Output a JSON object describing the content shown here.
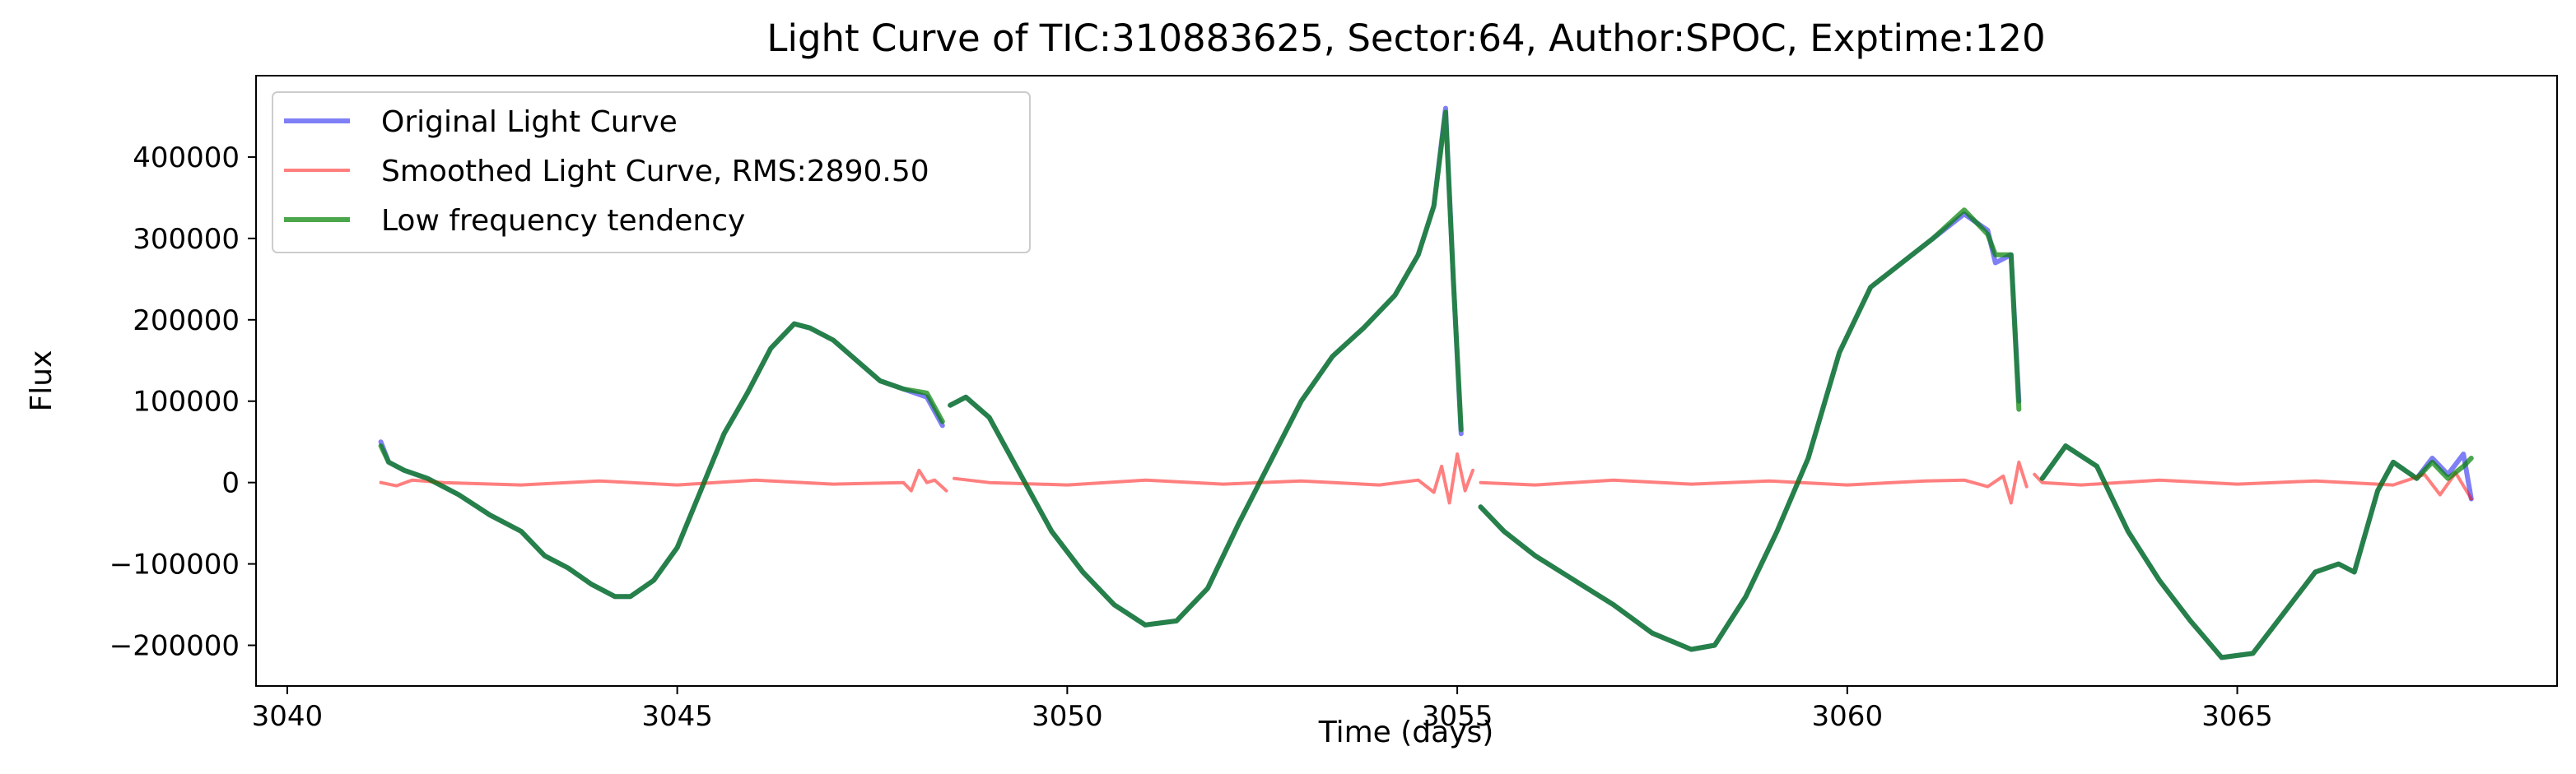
{
  "chart_data": {
    "type": "line",
    "title": "Light Curve of TIC:310883625, Sector:64, Author:SPOC, Exptime:120",
    "xlabel": "Time (days)",
    "ylabel": "Flux",
    "xlim": [
      3039.6,
      3069.1
    ],
    "ylim": [
      -250000,
      500000
    ],
    "xticks": [
      3040,
      3045,
      3050,
      3055,
      3060,
      3065
    ],
    "xtick_labels": [
      "3040",
      "3045",
      "3050",
      "3055",
      "3060",
      "3065"
    ],
    "yticks": [
      -200000,
      -100000,
      0,
      100000,
      200000,
      300000,
      400000
    ],
    "ytick_labels": [
      "−200000",
      "−100000",
      "0",
      "100000",
      "200000",
      "300000",
      "400000"
    ],
    "grid": false,
    "legend_position": "upper-left",
    "series": [
      {
        "name": "Original Light Curve",
        "color": "#0000ee",
        "opacity": 0.5,
        "linewidth": 3,
        "segments": [
          {
            "x": [
              3041.2,
              3041.3,
              3041.5,
              3041.8,
              3042.2,
              3042.6,
              3043.0,
              3043.3,
              3043.6,
              3043.9,
              3044.2,
              3044.4,
              3044.7,
              3045.0,
              3045.3,
              3045.6,
              3045.9,
              3046.2,
              3046.5,
              3046.7,
              3047.0,
              3047.3,
              3047.6,
              3047.9,
              3048.2,
              3048.4
            ],
            "y": [
              50000,
              25000,
              15000,
              5000,
              -15000,
              -40000,
              -60000,
              -90000,
              -105000,
              -125000,
              -140000,
              -140000,
              -120000,
              -80000,
              -10000,
              60000,
              110000,
              165000,
              195000,
              190000,
              175000,
              150000,
              125000,
              115000,
              105000,
              70000
            ]
          },
          {
            "x": [
              3048.5,
              3048.7,
              3049.0,
              3049.4,
              3049.8,
              3050.2,
              3050.6,
              3051.0,
              3051.4,
              3051.8,
              3052.2,
              3052.6,
              3053.0,
              3053.4,
              3053.8,
              3054.2,
              3054.5,
              3054.7,
              3054.85,
              3054.95,
              3055.05
            ],
            "y": [
              95000,
              105000,
              80000,
              10000,
              -60000,
              -110000,
              -150000,
              -175000,
              -170000,
              -130000,
              -50000,
              25000,
              100000,
              155000,
              190000,
              230000,
              280000,
              340000,
              460000,
              250000,
              60000
            ]
          },
          {
            "x": [
              3055.3,
              3055.6,
              3056.0,
              3056.5,
              3057.0,
              3057.5,
              3058.0,
              3058.3,
              3058.7,
              3059.1,
              3059.5,
              3059.9,
              3060.3,
              3060.7,
              3061.1,
              3061.5,
              3061.8,
              3061.9,
              3062.1,
              3062.2
            ],
            "y": [
              -30000,
              -60000,
              -90000,
              -120000,
              -150000,
              -185000,
              -205000,
              -200000,
              -140000,
              -60000,
              30000,
              160000,
              240000,
              270000,
              300000,
              330000,
              310000,
              270000,
              280000,
              100000
            ]
          },
          {
            "x": [
              3062.5,
              3062.8,
              3063.2,
              3063.6,
              3064.0,
              3064.4,
              3064.8,
              3065.2,
              3065.6,
              3066.0,
              3066.3,
              3066.5,
              3066.8,
              3067.0,
              3067.3,
              3067.5,
              3067.7,
              3067.9,
              3068.0
            ],
            "y": [
              5000,
              45000,
              20000,
              -60000,
              -120000,
              -170000,
              -215000,
              -210000,
              -160000,
              -110000,
              -100000,
              -110000,
              -10000,
              25000,
              5000,
              30000,
              10000,
              35000,
              -20000
            ]
          }
        ]
      },
      {
        "name": "Smoothed Light Curve, RMS:2890.50",
        "color": "#ff0000",
        "opacity": 0.5,
        "linewidth": 2,
        "segments": [
          {
            "x": [
              3041.2,
              3041.4,
              3041.6,
              3042.0,
              3043.0,
              3044.0,
              3045.0,
              3046.0,
              3047.0,
              3047.9,
              3048.0,
              3048.1,
              3048.2,
              3048.3,
              3048.45
            ],
            "y": [
              0,
              -4000,
              3000,
              0,
              -3000,
              2000,
              -3000,
              3000,
              -2000,
              0,
              -10000,
              15000,
              0,
              3000,
              -10000
            ]
          },
          {
            "x": [
              3048.55,
              3049.0,
              3050.0,
              3051.0,
              3052.0,
              3053.0,
              3054.0,
              3054.5,
              3054.7,
              3054.8,
              3054.9,
              3055.0,
              3055.1,
              3055.2
            ],
            "y": [
              5000,
              0,
              -3000,
              3000,
              -2000,
              2000,
              -3000,
              3000,
              -12000,
              20000,
              -25000,
              35000,
              -10000,
              15000
            ]
          },
          {
            "x": [
              3055.3,
              3056.0,
              3057.0,
              3058.0,
              3059.0,
              3060.0,
              3061.0,
              3061.5,
              3061.8,
              3062.0,
              3062.1,
              3062.2,
              3062.3
            ],
            "y": [
              0,
              -3000,
              3000,
              -2000,
              2000,
              -3000,
              2000,
              3000,
              -5000,
              8000,
              -25000,
              25000,
              -5000
            ]
          },
          {
            "x": [
              3062.4,
              3062.5,
              3063.0,
              3064.0,
              3065.0,
              3066.0,
              3067.0,
              3067.4,
              3067.6,
              3067.8,
              3068.0
            ],
            "y": [
              10000,
              0,
              -3000,
              3000,
              -2000,
              2000,
              -3000,
              10000,
              -15000,
              12000,
              -20000
            ]
          }
        ]
      },
      {
        "name": "Low frequency tendency",
        "color": "#008000",
        "opacity": 0.7,
        "linewidth": 3,
        "segments": [
          {
            "x": [
              3041.2,
              3041.3,
              3041.5,
              3041.8,
              3042.2,
              3042.6,
              3043.0,
              3043.3,
              3043.6,
              3043.9,
              3044.2,
              3044.4,
              3044.7,
              3045.0,
              3045.3,
              3045.6,
              3045.9,
              3046.2,
              3046.5,
              3046.7,
              3047.0,
              3047.3,
              3047.6,
              3047.9,
              3048.2,
              3048.4
            ],
            "y": [
              45000,
              25000,
              15000,
              5000,
              -15000,
              -40000,
              -60000,
              -90000,
              -105000,
              -125000,
              -140000,
              -140000,
              -120000,
              -80000,
              -10000,
              60000,
              110000,
              165000,
              195000,
              190000,
              175000,
              150000,
              125000,
              115000,
              110000,
              75000
            ]
          },
          {
            "x": [
              3048.5,
              3048.7,
              3049.0,
              3049.4,
              3049.8,
              3050.2,
              3050.6,
              3051.0,
              3051.4,
              3051.8,
              3052.2,
              3052.6,
              3053.0,
              3053.4,
              3053.8,
              3054.2,
              3054.5,
              3054.7,
              3054.85,
              3054.95,
              3055.05
            ],
            "y": [
              95000,
              105000,
              80000,
              10000,
              -60000,
              -110000,
              -150000,
              -175000,
              -170000,
              -130000,
              -50000,
              25000,
              100000,
              155000,
              190000,
              230000,
              280000,
              340000,
              455000,
              250000,
              65000
            ]
          },
          {
            "x": [
              3055.3,
              3055.6,
              3056.0,
              3056.5,
              3057.0,
              3057.5,
              3058.0,
              3058.3,
              3058.7,
              3059.1,
              3059.5,
              3059.9,
              3060.3,
              3060.7,
              3061.1,
              3061.5,
              3061.8,
              3061.9,
              3062.1,
              3062.2
            ],
            "y": [
              -30000,
              -60000,
              -90000,
              -120000,
              -150000,
              -185000,
              -205000,
              -200000,
              -140000,
              -60000,
              30000,
              160000,
              240000,
              270000,
              300000,
              335000,
              305000,
              280000,
              280000,
              90000
            ]
          },
          {
            "x": [
              3062.5,
              3062.8,
              3063.2,
              3063.6,
              3064.0,
              3064.4,
              3064.8,
              3065.2,
              3065.6,
              3066.0,
              3066.3,
              3066.5,
              3066.8,
              3067.0,
              3067.3,
              3067.5,
              3067.7,
              3067.9,
              3068.0
            ],
            "y": [
              5000,
              45000,
              20000,
              -60000,
              -120000,
              -170000,
              -215000,
              -210000,
              -160000,
              -110000,
              -100000,
              -110000,
              -10000,
              25000,
              5000,
              25000,
              5000,
              20000,
              30000
            ]
          }
        ]
      }
    ]
  }
}
